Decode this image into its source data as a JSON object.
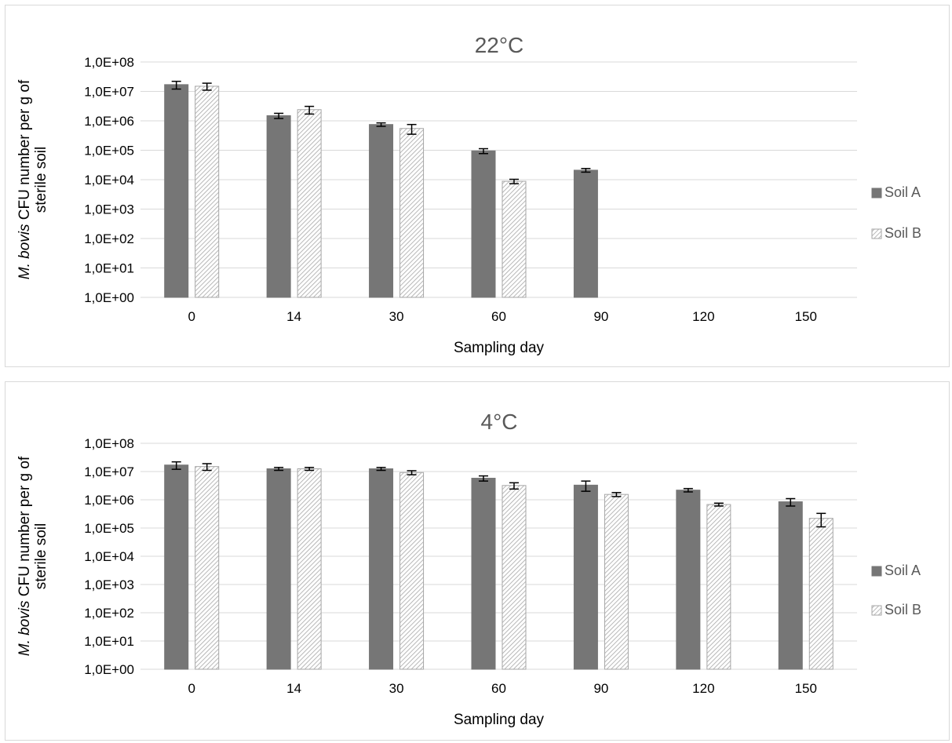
{
  "chart_data": [
    {
      "type": "bar",
      "title": "22°C",
      "xlabel": "Sampling day",
      "ylabel_lines": [
        {
          "italic": "M. bovis",
          "rest": " CFU number per g of"
        },
        {
          "italic": "",
          "rest": "sterile soil"
        }
      ],
      "y_scale": "log10",
      "ylim": [
        1,
        100000000
      ],
      "yticks": [
        "1,0E+00",
        "1,0E+01",
        "1,0E+02",
        "1,0E+03",
        "1,0E+04",
        "1,0E+05",
        "1,0E+06",
        "1,0E+07",
        "1,0E+08"
      ],
      "categories": [
        "0",
        "14",
        "30",
        "60",
        "90",
        "120",
        "150"
      ],
      "grid": true,
      "legend_position": "right",
      "series": [
        {
          "name": "Soil A",
          "color": "#767676",
          "pattern": "solid",
          "values": [
            17000000,
            1500000,
            750000,
            95000,
            21000,
            null,
            null
          ],
          "errors": [
            5000000,
            300000,
            100000,
            18000,
            3000,
            null,
            null
          ]
        },
        {
          "name": "Soil B",
          "color": "#d9d9d9",
          "pattern": "hatched",
          "values": [
            15000000,
            2400000,
            550000,
            8800,
            null,
            null,
            null
          ],
          "errors": [
            4000000,
            700000,
            200000,
            1500,
            null,
            null,
            null
          ]
        }
      ]
    },
    {
      "type": "bar",
      "title": "4°C",
      "xlabel": "Sampling day",
      "ylabel_lines": [
        {
          "italic": "M. bovis",
          "rest": " CFU number per g of"
        },
        {
          "italic": "",
          "rest": "sterile soil"
        }
      ],
      "y_scale": "log10",
      "ylim": [
        1,
        100000000
      ],
      "yticks": [
        "1,0E+00",
        "1,0E+01",
        "1,0E+02",
        "1,0E+03",
        "1,0E+04",
        "1,0E+05",
        "1,0E+06",
        "1,0E+07",
        "1,0E+08"
      ],
      "categories": [
        "0",
        "14",
        "30",
        "60",
        "90",
        "120",
        "150"
      ],
      "grid": true,
      "legend_position": "right",
      "series": [
        {
          "name": "Soil A",
          "color": "#767676",
          "pattern": "solid",
          "values": [
            17000000,
            12500000,
            12500000,
            5800000,
            3300000,
            2200000,
            850000
          ],
          "errors": [
            5000000,
            1500000,
            1500000,
            1200000,
            1300000,
            300000,
            250000
          ]
        },
        {
          "name": "Soil B",
          "color": "#d9d9d9",
          "pattern": "hatched",
          "values": [
            15000000,
            12500000,
            9200000,
            3200000,
            1550000,
            680000,
            220000
          ],
          "errors": [
            4000000,
            1500000,
            1500000,
            800000,
            250000,
            80000,
            110000
          ]
        }
      ]
    }
  ]
}
